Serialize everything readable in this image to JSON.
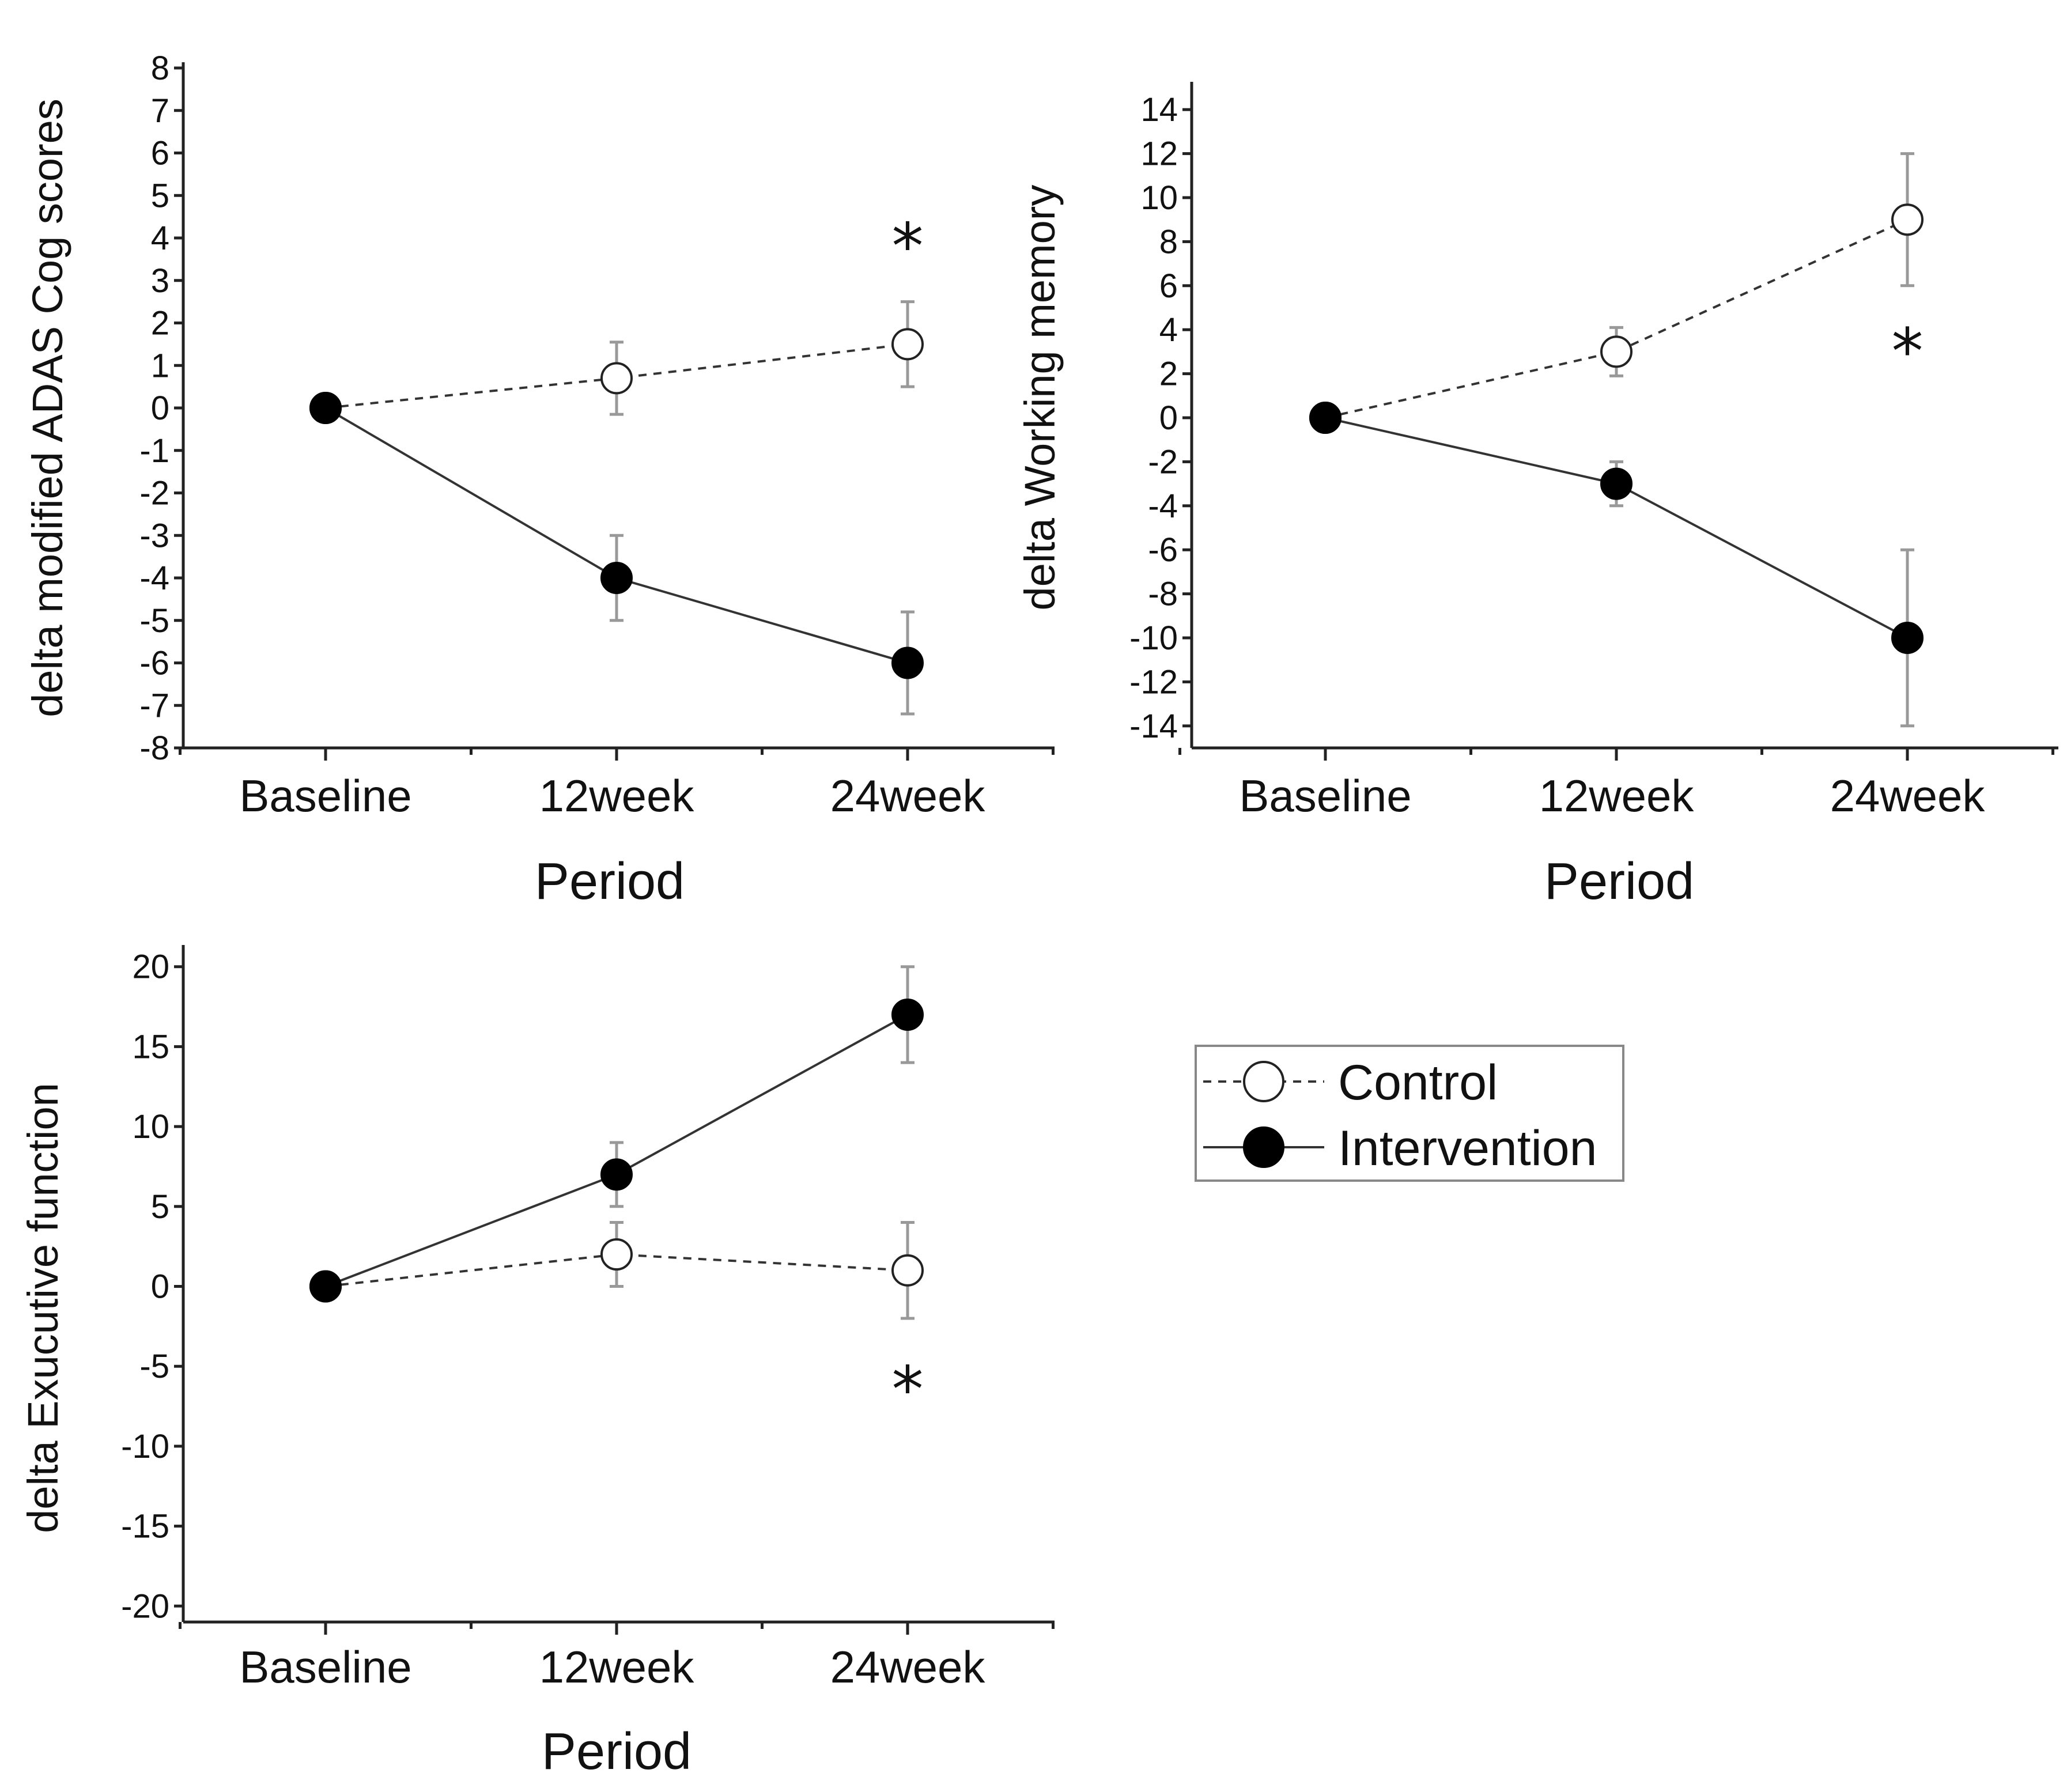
{
  "legend": {
    "control_label": "Control",
    "intervention_label": "Intervention"
  },
  "chart_data": [
    {
      "type": "line",
      "ylabel": "delta modified ADAS Cog scores",
      "xlabel": "Period",
      "categories": [
        "Baseline",
        "12week",
        "24week"
      ],
      "ylim": [
        -8,
        8
      ],
      "yticks": [
        8,
        7,
        6,
        5,
        4,
        3,
        2,
        1,
        0,
        -1,
        -2,
        -3,
        -4,
        -5,
        -6,
        -7,
        -8
      ],
      "series": [
        {
          "name": "Control",
          "values": [
            0,
            0.7,
            1.5
          ],
          "errors": [
            0,
            0.85,
            1.0
          ]
        },
        {
          "name": "Intervention",
          "values": [
            0,
            -4,
            -6
          ],
          "errors": [
            0,
            1.0,
            1.2
          ]
        }
      ],
      "annotation": {
        "text": "*",
        "category": "24week",
        "y": 3.9
      }
    },
    {
      "type": "line",
      "ylabel": "delta Working memory",
      "xlabel": "Period",
      "categories": [
        "Baseline",
        "12week",
        "24week"
      ],
      "ylim": [
        -15,
        15
      ],
      "yticks": [
        14,
        12,
        10,
        8,
        6,
        4,
        2,
        0,
        -2,
        -4,
        -6,
        -8,
        -10,
        -12,
        -14
      ],
      "series": [
        {
          "name": "Control",
          "values": [
            0,
            3,
            9
          ],
          "errors": [
            0,
            1.1,
            3.0
          ]
        },
        {
          "name": "Intervention",
          "values": [
            0,
            -3,
            -10
          ],
          "errors": [
            0,
            1.0,
            4.0
          ]
        }
      ],
      "annotation": {
        "text": "*",
        "category": "24week",
        "y": 3.2
      }
    },
    {
      "type": "line",
      "ylabel": "delta Exucutive function",
      "xlabel": "Period",
      "categories": [
        "Baseline",
        "12week",
        "24week"
      ],
      "ylim": [
        -21,
        21
      ],
      "yticks": [
        20,
        15,
        10,
        5,
        0,
        -5,
        -10,
        -15,
        -20
      ],
      "series": [
        {
          "name": "Control",
          "values": [
            0,
            2,
            1
          ],
          "errors": [
            0,
            2.0,
            3.0
          ]
        },
        {
          "name": "Intervention",
          "values": [
            0,
            7,
            17
          ],
          "errors": [
            0,
            2.0,
            3.0
          ]
        }
      ],
      "annotation": {
        "text": "*",
        "category": "24week",
        "y": -6.2
      }
    }
  ]
}
